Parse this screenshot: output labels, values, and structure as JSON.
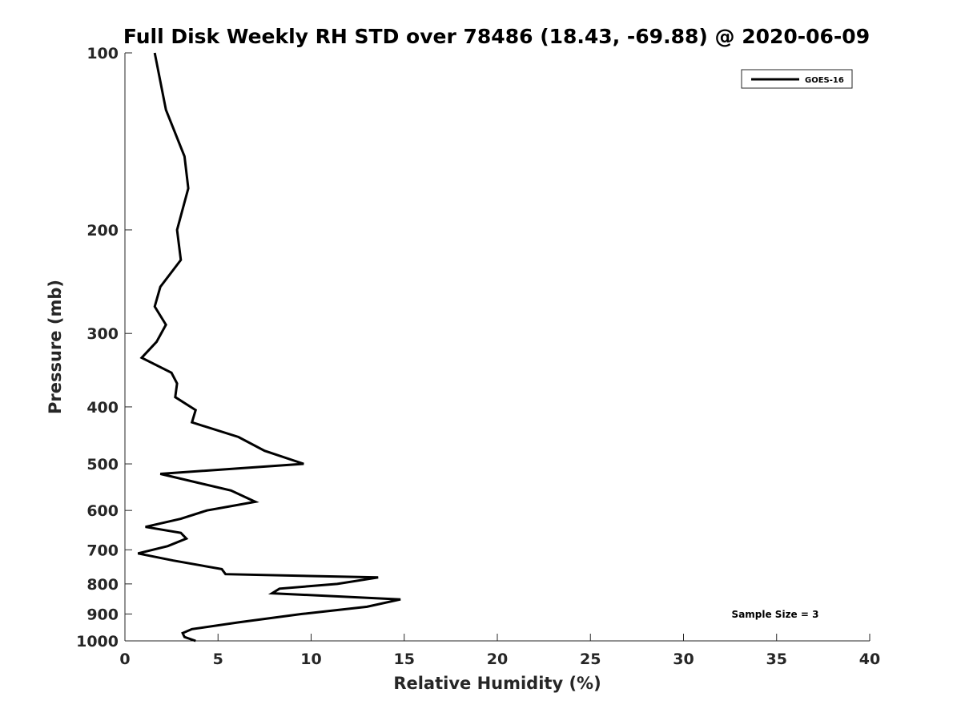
{
  "chart_data": {
    "type": "line",
    "title": "Full Disk Weekly RH STD over 78486 (18.43, -69.88) @ 2020-06-09",
    "xlabel": "Relative Humidity (%)",
    "ylabel": "Pressure (mb)",
    "xlim": [
      0,
      40
    ],
    "ylim": [
      100,
      1000
    ],
    "y_scale": "log",
    "y_reversed": true,
    "grid": false,
    "legend_position": "top-right",
    "x_ticks": [
      0,
      5,
      10,
      15,
      20,
      25,
      30,
      35,
      40
    ],
    "x_tick_labels": [
      "0",
      "5",
      "10",
      "15",
      "20",
      "25",
      "30",
      "35",
      "40"
    ],
    "y_ticks": [
      100,
      200,
      300,
      400,
      500,
      600,
      700,
      800,
      900,
      1000
    ],
    "y_tick_labels": [
      "100",
      "200",
      "300",
      "400",
      "500",
      "600",
      "700",
      "800",
      "900",
      "1000"
    ],
    "series": [
      {
        "name": "GOES-16",
        "color": "#000000",
        "points": [
          [
            1.6,
            100
          ],
          [
            2.2,
            125
          ],
          [
            3.2,
            150
          ],
          [
            3.4,
            170
          ],
          [
            2.8,
            200
          ],
          [
            3.0,
            225
          ],
          [
            1.9,
            250
          ],
          [
            1.6,
            270
          ],
          [
            2.2,
            290
          ],
          [
            1.7,
            310
          ],
          [
            0.9,
            330
          ],
          [
            2.5,
            350
          ],
          [
            2.8,
            365
          ],
          [
            2.7,
            385
          ],
          [
            3.8,
            405
          ],
          [
            3.6,
            425
          ],
          [
            6.1,
            450
          ],
          [
            7.5,
            475
          ],
          [
            9.6,
            500
          ],
          [
            1.9,
            520
          ],
          [
            5.7,
            555
          ],
          [
            7.0,
            580
          ],
          [
            4.4,
            600
          ],
          [
            3.0,
            620
          ],
          [
            1.1,
            640
          ],
          [
            3.0,
            655
          ],
          [
            3.3,
            670
          ],
          [
            2.3,
            690
          ],
          [
            0.7,
            710
          ],
          [
            2.6,
            730
          ],
          [
            5.2,
            755
          ],
          [
            5.4,
            770
          ],
          [
            13.6,
            780
          ],
          [
            11.4,
            800
          ],
          [
            8.3,
            815
          ],
          [
            7.9,
            830
          ],
          [
            14.8,
            850
          ],
          [
            13.0,
            875
          ],
          [
            9.5,
            900
          ],
          [
            6.1,
            930
          ],
          [
            3.6,
            955
          ],
          [
            3.1,
            970
          ],
          [
            3.2,
            985
          ],
          [
            3.8,
            1000
          ]
        ]
      }
    ],
    "annotation": "Sample Size = 3"
  }
}
